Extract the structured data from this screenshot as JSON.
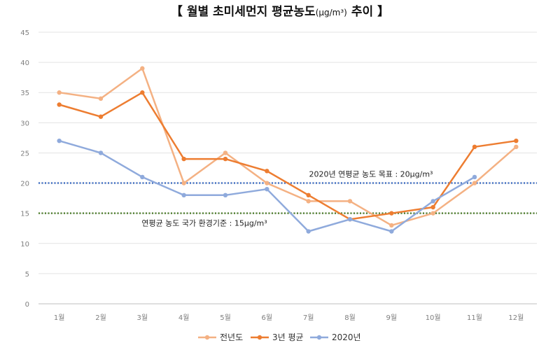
{
  "chart_data": {
    "type": "line",
    "title": {
      "prefix": "【 월별 초미세먼지 평균농도",
      "unit": "(μg/m³)",
      "suffix": "추이 】"
    },
    "categories": [
      "1월",
      "2월",
      "3월",
      "4월",
      "5월",
      "6월",
      "7월",
      "8월",
      "9월",
      "10월",
      "11월",
      "12월"
    ],
    "ylim": [
      0,
      45
    ],
    "yticks": [
      "0",
      "5",
      "10",
      "15",
      "20",
      "25",
      "30",
      "35",
      "40",
      "45"
    ],
    "grid": true,
    "legend_position": "bottom",
    "series": [
      {
        "name": "전년도",
        "color": "#F4B183",
        "values": [
          35,
          34,
          39,
          20,
          25,
          20,
          17,
          17,
          13,
          15,
          20,
          26
        ]
      },
      {
        "name": "3년 평균",
        "color": "#ED7D31",
        "values": [
          33,
          31,
          35,
          24,
          24,
          22,
          18,
          14,
          15,
          16,
          26,
          27
        ]
      },
      {
        "name": "2020년",
        "color": "#8FAADC",
        "values": [
          27,
          25,
          21,
          18,
          18,
          19,
          12,
          14,
          12,
          17,
          21,
          null
        ]
      }
    ],
    "reference_lines": [
      {
        "value": 20,
        "color": "#4472C4",
        "label": "2020년 연평균 농도 목표 : 20μg/m³"
      },
      {
        "value": 15,
        "color": "#548235",
        "label": "연평균 농도 국가 환경기준 : 15μg/m³"
      }
    ]
  }
}
